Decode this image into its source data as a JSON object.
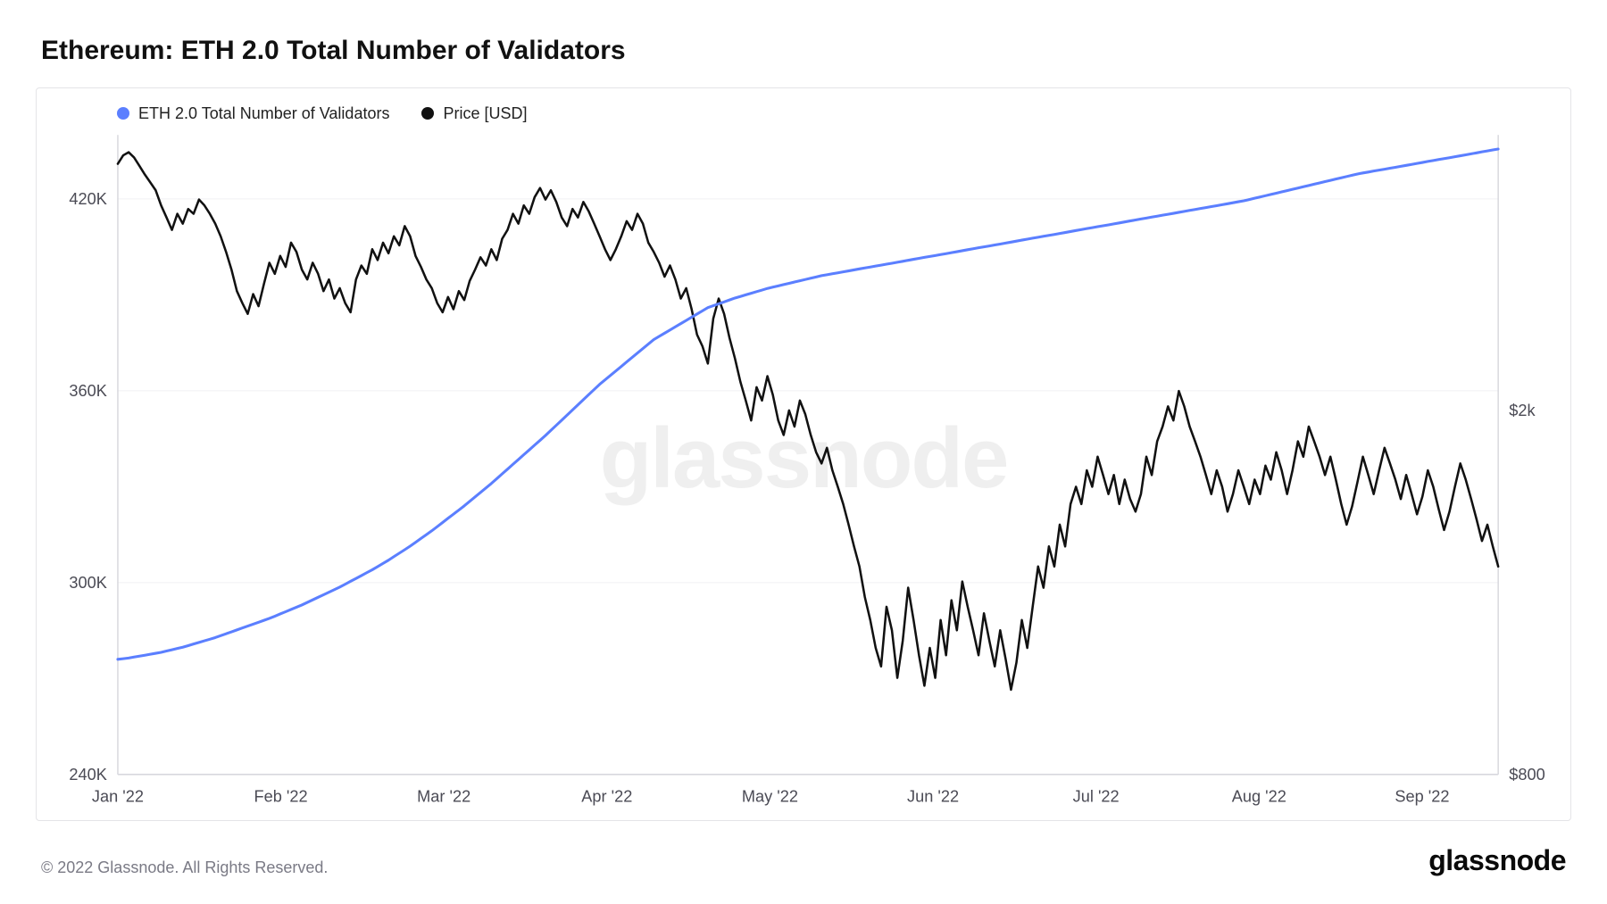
{
  "title": "Ethereum: ETH 2.0 Total Number of Validators",
  "watermark": "glassnode",
  "copyright": "© 2022 Glassnode. All Rights Reserved.",
  "brand": "glassnode",
  "legend": {
    "series1": {
      "label": "ETH 2.0 Total Number of Validators",
      "color": "#5b7fff"
    },
    "series2": {
      "label": "Price [USD]",
      "color": "#111111"
    }
  },
  "chart": {
    "type": "line",
    "background_color": "#ffffff",
    "grid_color": "#f0f0f3",
    "axis_color": "#d8d8de",
    "left_axis": {
      "min": 240000,
      "max": 440000,
      "ticks": [
        240000,
        300000,
        360000,
        420000
      ],
      "tick_labels": [
        "240K",
        "300K",
        "360K",
        "420K"
      ]
    },
    "right_axis": {
      "type": "log",
      "min": 800,
      "max": 4000,
      "ticks": [
        800,
        2000
      ],
      "tick_labels": [
        "$800",
        "$2k"
      ]
    },
    "x_axis": {
      "labels": [
        "Jan '22",
        "Feb '22",
        "Mar '22",
        "Apr '22",
        "May '22",
        "Jun '22",
        "Jul '22",
        "Aug '22",
        "Sep '22"
      ],
      "n_points": 256
    },
    "series": {
      "validators": {
        "color": "#5b7fff",
        "line_width": 3,
        "data": [
          276000,
          276200,
          276400,
          276700,
          277000,
          277300,
          277600,
          277900,
          278200,
          278600,
          279000,
          279400,
          279800,
          280300,
          280800,
          281300,
          281800,
          282300,
          282800,
          283400,
          284000,
          284600,
          285200,
          285800,
          286400,
          287000,
          287600,
          288200,
          288800,
          289500,
          290200,
          290900,
          291600,
          292300,
          293000,
          293800,
          294600,
          295400,
          296200,
          297000,
          297800,
          298600,
          299500,
          300400,
          301300,
          302200,
          303100,
          304000,
          305000,
          306000,
          307000,
          308100,
          309200,
          310300,
          311400,
          312600,
          313800,
          315000,
          316200,
          317500,
          318800,
          320100,
          321400,
          322700,
          324000,
          325400,
          326800,
          328200,
          329600,
          331000,
          332500,
          334000,
          335500,
          337000,
          338500,
          340000,
          341500,
          343000,
          344500,
          346000,
          347600,
          349200,
          350800,
          352400,
          354000,
          355600,
          357200,
          358800,
          360400,
          362000,
          363400,
          364800,
          366200,
          367600,
          369000,
          370400,
          371800,
          373200,
          374600,
          376000,
          377000,
          378000,
          379000,
          380000,
          381000,
          382000,
          383000,
          384000,
          385000,
          386000,
          386600,
          387200,
          387800,
          388400,
          389000,
          389500,
          390000,
          390500,
          391000,
          391500,
          392000,
          392400,
          392800,
          393200,
          393600,
          394000,
          394400,
          394800,
          395200,
          395600,
          396000,
          396300,
          396600,
          396900,
          397200,
          397500,
          397800,
          398100,
          398400,
          398700,
          399000,
          399300,
          399600,
          399900,
          400200,
          400500,
          400800,
          401100,
          401400,
          401700,
          402000,
          402300,
          402600,
          402900,
          403200,
          403500,
          403800,
          404100,
          404400,
          404700,
          405000,
          405300,
          405600,
          405900,
          406200,
          406500,
          406800,
          407100,
          407400,
          407700,
          408000,
          408300,
          408600,
          408900,
          409200,
          409500,
          409800,
          410100,
          410400,
          410700,
          411000,
          411300,
          411600,
          411900,
          412200,
          412500,
          412800,
          413100,
          413400,
          413700,
          414000,
          414300,
          414600,
          414900,
          415200,
          415500,
          415800,
          416100,
          416400,
          416700,
          417000,
          417300,
          417600,
          417900,
          418200,
          418500,
          418800,
          419100,
          419400,
          419800,
          420200,
          420600,
          421000,
          421400,
          421800,
          422200,
          422600,
          423000,
          423400,
          423800,
          424200,
          424600,
          425000,
          425400,
          425800,
          426200,
          426600,
          427000,
          427400,
          427800,
          428100,
          428400,
          428700,
          429000,
          429300,
          429600,
          429900,
          430200,
          430500,
          430800,
          431100,
          431400,
          431700,
          432000,
          432300,
          432600,
          432900,
          433200,
          433500,
          433800,
          434100,
          434400,
          434700,
          435000,
          435300,
          435600
        ]
      },
      "price": {
        "color": "#111111",
        "line_width": 2.5,
        "data": [
          3720,
          3800,
          3830,
          3780,
          3700,
          3620,
          3550,
          3480,
          3350,
          3250,
          3150,
          3280,
          3200,
          3320,
          3280,
          3400,
          3350,
          3280,
          3200,
          3100,
          2980,
          2850,
          2700,
          2620,
          2550,
          2680,
          2600,
          2750,
          2900,
          2820,
          2950,
          2870,
          3050,
          2980,
          2850,
          2780,
          2900,
          2820,
          2700,
          2780,
          2650,
          2720,
          2620,
          2560,
          2780,
          2880,
          2820,
          3000,
          2920,
          3050,
          2970,
          3100,
          3030,
          3180,
          3100,
          2950,
          2870,
          2780,
          2720,
          2620,
          2560,
          2660,
          2580,
          2700,
          2640,
          2770,
          2850,
          2940,
          2880,
          3000,
          2920,
          3080,
          3150,
          3280,
          3200,
          3350,
          3280,
          3420,
          3500,
          3400,
          3480,
          3380,
          3250,
          3180,
          3320,
          3250,
          3380,
          3300,
          3200,
          3100,
          3000,
          2920,
          3000,
          3100,
          3220,
          3150,
          3280,
          3200,
          3050,
          2980,
          2900,
          2800,
          2880,
          2780,
          2650,
          2720,
          2580,
          2420,
          2350,
          2250,
          2520,
          2650,
          2550,
          2400,
          2280,
          2150,
          2050,
          1950,
          2120,
          2050,
          2180,
          2080,
          1950,
          1880,
          2000,
          1920,
          2050,
          1980,
          1880,
          1800,
          1750,
          1820,
          1720,
          1650,
          1580,
          1500,
          1420,
          1350,
          1250,
          1180,
          1100,
          1050,
          1220,
          1150,
          1020,
          1120,
          1280,
          1180,
          1080,
          1000,
          1100,
          1020,
          1180,
          1080,
          1240,
          1150,
          1300,
          1220,
          1150,
          1080,
          1200,
          1120,
          1050,
          1150,
          1070,
          990,
          1060,
          1180,
          1100,
          1220,
          1350,
          1280,
          1420,
          1350,
          1500,
          1420,
          1580,
          1650,
          1580,
          1720,
          1650,
          1780,
          1700,
          1620,
          1700,
          1580,
          1680,
          1600,
          1550,
          1620,
          1780,
          1700,
          1850,
          1920,
          2020,
          1950,
          2100,
          2020,
          1920,
          1850,
          1780,
          1700,
          1620,
          1720,
          1650,
          1550,
          1620,
          1720,
          1650,
          1580,
          1680,
          1620,
          1740,
          1680,
          1800,
          1720,
          1620,
          1720,
          1850,
          1780,
          1920,
          1850,
          1780,
          1700,
          1780,
          1680,
          1580,
          1500,
          1570,
          1670,
          1780,
          1700,
          1620,
          1720,
          1820,
          1750,
          1680,
          1600,
          1700,
          1620,
          1540,
          1610,
          1720,
          1650,
          1560,
          1480,
          1550,
          1650,
          1750,
          1680,
          1600,
          1520,
          1440,
          1500,
          1420,
          1350
        ]
      }
    }
  }
}
